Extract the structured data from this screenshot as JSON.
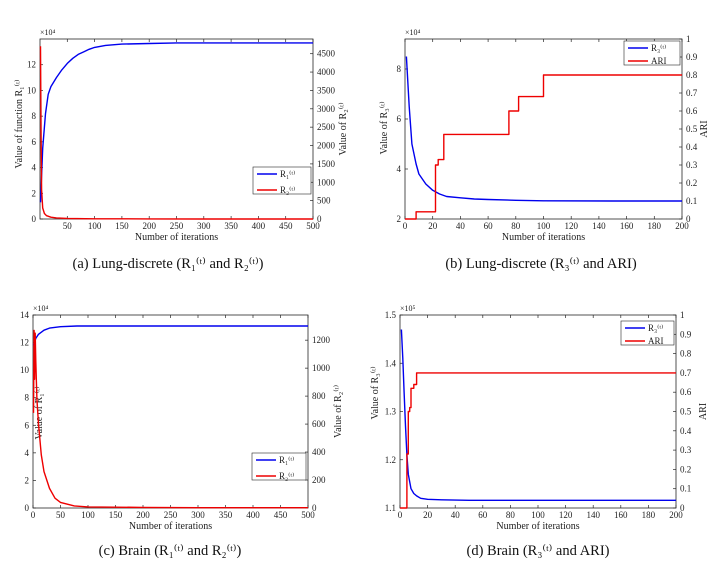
{
  "chart_data": [
    {
      "type": "line",
      "caption": "(a) Lung-discrete (R₁⁽ᵗ⁾ and R₂⁽ᵗ⁾)",
      "xlabel": "Number of iterations",
      "ylabel_left": "Value of function R₁⁽ᵗ⁾",
      "ylabel_right": "Value of R₂⁽ᵗ⁾",
      "left_multiplier": "×10⁴",
      "xlim": [
        0,
        500
      ],
      "xticks": [
        50,
        100,
        150,
        200,
        250,
        300,
        350,
        400,
        450,
        500
      ],
      "ylim_left": [
        0,
        14
      ],
      "yticks_left": [
        0,
        2,
        4,
        6,
        8,
        10,
        12
      ],
      "ylim_right": [
        0,
        4900
      ],
      "yticks_right": [
        0,
        500,
        1000,
        1500,
        2000,
        2500,
        3000,
        3500,
        4000,
        4500
      ],
      "legend_position": "right",
      "series": [
        {
          "name": "R₁⁽ᵗ⁾",
          "axis": "left",
          "color": "#0000ee",
          "x": [
            1,
            5,
            10,
            15,
            20,
            30,
            40,
            50,
            60,
            70,
            80,
            90,
            100,
            120,
            150,
            200,
            250,
            300,
            400,
            500
          ],
          "y": [
            1.3,
            5.5,
            8.2,
            9.7,
            10.3,
            11.0,
            11.6,
            12.1,
            12.5,
            12.8,
            13.0,
            13.2,
            13.35,
            13.5,
            13.6,
            13.65,
            13.7,
            13.7,
            13.7,
            13.7
          ]
        },
        {
          "name": "R₂⁽ᵗ⁾",
          "axis": "right",
          "color": "#ee0000",
          "x": [
            1,
            2,
            3,
            5,
            8,
            12,
            20,
            30,
            50,
            100,
            200,
            300,
            500
          ],
          "y": [
            4700,
            2200,
            800,
            300,
            150,
            90,
            50,
            30,
            15,
            5,
            2,
            1,
            1
          ]
        }
      ]
    },
    {
      "type": "line",
      "caption": "(b) Lung-discrete (R₃⁽ᵗ⁾ and ARI)",
      "xlabel": "Number of iterations",
      "ylabel_left": "Value of R₃⁽ᵗ⁾",
      "ylabel_right": "ARI",
      "left_multiplier": "×10⁴",
      "xlim": [
        0,
        200
      ],
      "xticks": [
        0,
        20,
        40,
        60,
        80,
        100,
        120,
        140,
        160,
        180,
        200
      ],
      "ylim_left": [
        2,
        9.2
      ],
      "yticks_left": [
        2,
        4,
        6,
        8
      ],
      "ylim_right": [
        0,
        1
      ],
      "yticks_right": [
        0,
        0.1,
        0.2,
        0.3,
        0.4,
        0.5,
        0.6,
        0.7,
        0.8,
        0.9,
        1
      ],
      "legend_position": "top-right",
      "series": [
        {
          "name": "R₃⁽ᵗ⁾",
          "axis": "left",
          "color": "#0000ee",
          "x": [
            1,
            3,
            5,
            8,
            10,
            15,
            20,
            25,
            30,
            40,
            50,
            60,
            80,
            100,
            150,
            200
          ],
          "y": [
            8.5,
            6.5,
            5.0,
            4.2,
            3.8,
            3.4,
            3.15,
            3.0,
            2.9,
            2.85,
            2.8,
            2.78,
            2.75,
            2.73,
            2.72,
            2.72
          ]
        },
        {
          "name": "ARI",
          "axis": "right",
          "color": "#ee0000",
          "step": true,
          "x": [
            0,
            8,
            22,
            24,
            28,
            75,
            82,
            100,
            200
          ],
          "y": [
            0.0,
            0.04,
            0.3,
            0.33,
            0.47,
            0.6,
            0.68,
            0.8,
            0.8
          ]
        }
      ]
    },
    {
      "type": "line",
      "caption": "(c) Brain (R₁⁽ᵗ⁾ and R₂⁽ᵗ⁾)",
      "xlabel": "Number of iterations",
      "ylabel_left": "Value of R₁⁽ᵗ⁾",
      "ylabel_right": "Value of R₂⁽ᵗ⁾",
      "left_multiplier": "×10⁴",
      "xlim": [
        0,
        500
      ],
      "xticks": [
        0,
        50,
        100,
        150,
        200,
        250,
        300,
        350,
        400,
        450,
        500
      ],
      "ylim_left": [
        0,
        14
      ],
      "yticks_left": [
        0,
        2,
        4,
        6,
        8,
        10,
        12,
        14
      ],
      "ylim_right": [
        0,
        1380
      ],
      "yticks_right": [
        0,
        200,
        400,
        600,
        800,
        1000,
        1200
      ],
      "legend_position": "bottom-right",
      "series": [
        {
          "name": "R₁⁽ᵗ⁾",
          "axis": "left",
          "color": "#0000ee",
          "x": [
            1,
            5,
            10,
            20,
            30,
            50,
            80,
            100,
            200,
            300,
            500
          ],
          "y": [
            11.8,
            12.3,
            12.6,
            12.9,
            13.05,
            13.15,
            13.2,
            13.2,
            13.2,
            13.2,
            13.2
          ]
        },
        {
          "name": "R₂⁽ᵗ⁾",
          "axis": "right",
          "color": "#ee0000",
          "x": [
            1,
            2,
            3,
            4,
            5,
            7,
            10,
            15,
            20,
            30,
            40,
            50,
            75,
            100,
            200,
            300,
            500
          ],
          "y": [
            680,
            1270,
            920,
            1250,
            1050,
            780,
            600,
            380,
            260,
            140,
            70,
            40,
            15,
            8,
            4,
            2,
            2
          ]
        }
      ]
    },
    {
      "type": "line",
      "caption": "(d) Brain (R₃⁽ᵗ⁾ and ARI)",
      "xlabel": "Number of iterations",
      "ylabel_left": "Value of R₃⁽ᵗ⁾",
      "ylabel_right": "ARI",
      "left_multiplier": "×10⁵",
      "xlim": [
        0,
        200
      ],
      "xticks": [
        0,
        20,
        40,
        60,
        80,
        100,
        120,
        140,
        160,
        180,
        200
      ],
      "ylim_left": [
        1.1,
        1.5
      ],
      "yticks_left": [
        1.1,
        1.2,
        1.3,
        1.4,
        1.5
      ],
      "ylim_right": [
        0,
        1
      ],
      "yticks_right": [
        0,
        0.1,
        0.2,
        0.3,
        0.4,
        0.5,
        0.6,
        0.7,
        0.8,
        0.9,
        1
      ],
      "legend_position": "top-right",
      "series": [
        {
          "name": "R₃⁽ᵗ⁾",
          "axis": "left",
          "color": "#0000ee",
          "x": [
            1,
            2,
            3,
            4,
            5,
            6,
            8,
            10,
            12,
            15,
            20,
            30,
            50,
            100,
            200
          ],
          "y": [
            1.47,
            1.41,
            1.34,
            1.27,
            1.21,
            1.17,
            1.14,
            1.13,
            1.125,
            1.12,
            1.118,
            1.117,
            1.116,
            1.116,
            1.116
          ]
        },
        {
          "name": "ARI",
          "axis": "right",
          "color": "#ee0000",
          "step": true,
          "x": [
            0,
            3,
            5,
            6,
            7,
            8,
            10,
            12,
            200
          ],
          "y": [
            0.0,
            0.0,
            0.28,
            0.5,
            0.52,
            0.62,
            0.64,
            0.7,
            0.7
          ]
        }
      ]
    }
  ]
}
